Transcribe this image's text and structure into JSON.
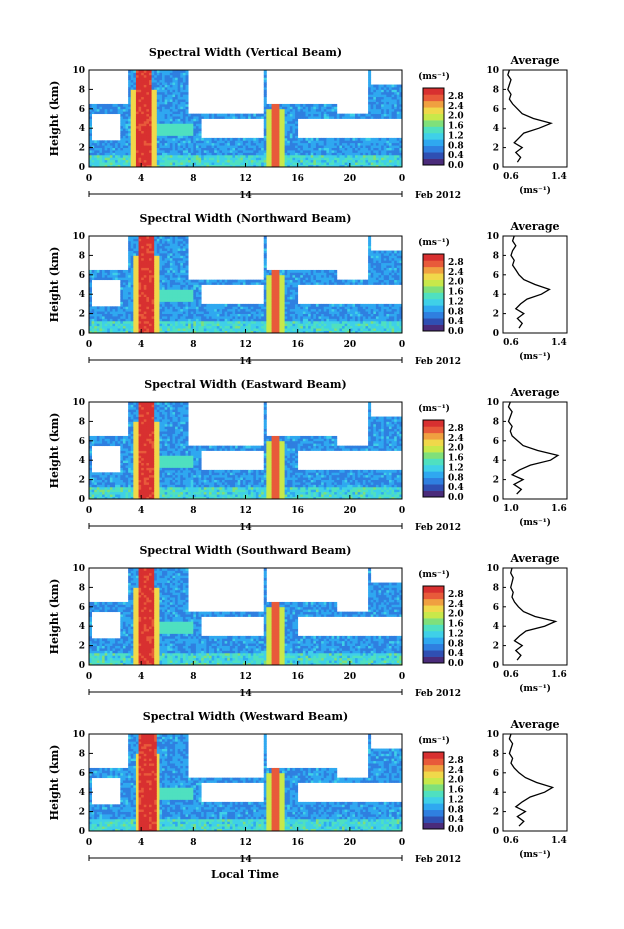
{
  "figure": {
    "xlabel": "Local Time",
    "ylabel": "Height (km)",
    "date_label": "Feb 2012",
    "day_label": "14",
    "colorbar_unit": "(ms⁻¹)",
    "average_title": "Average",
    "average_xlabel": "(ms⁻¹)"
  },
  "colormap": [
    "#4a2b7a",
    "#2f4fb3",
    "#2f7fe0",
    "#2fa8f0",
    "#3fd0e8",
    "#4fe0c0",
    "#7fe07a",
    "#c8e84a",
    "#f0d84a",
    "#f0a040",
    "#e85a3a",
    "#d83030"
  ],
  "chart_data": [
    {
      "type": "heatmap",
      "title": "Spectral Width (Vertical Beam)",
      "xlim": [
        0,
        24
      ],
      "ylim": [
        0,
        10
      ],
      "x_ticks": [
        "0",
        "4",
        "8",
        "12",
        "16",
        "20",
        "0"
      ],
      "y_ticks": [
        "0",
        "2",
        "4",
        "6",
        "8",
        "10"
      ],
      "colorbar_ticks": [
        "0.0",
        "0.4",
        "0.8",
        "1.2",
        "1.6",
        "2.0",
        "2.4",
        "2.8"
      ],
      "average_profile": {
        "xlim": [
          0.6,
          1.4
        ],
        "x_ticks": [
          "0.6",
          "1.4"
        ],
        "y_ticks": [
          "0",
          "2",
          "4",
          "6",
          "8",
          "10"
        ],
        "height": [
          0.5,
          1,
          1.5,
          2,
          2.5,
          3,
          3.5,
          4,
          4.5,
          5,
          5.5,
          6,
          6.5,
          7,
          7.5,
          8,
          8.5,
          9,
          9.5,
          10
        ],
        "value": [
          0.78,
          0.82,
          0.76,
          0.84,
          0.74,
          0.8,
          0.86,
          1.05,
          1.2,
          0.98,
          0.84,
          0.78,
          0.72,
          0.68,
          0.7,
          0.66,
          0.68,
          0.7,
          0.66,
          0.68
        ]
      }
    },
    {
      "type": "heatmap",
      "title": "Spectral Width (Northward Beam)",
      "xlim": [
        0,
        24
      ],
      "ylim": [
        0,
        10
      ],
      "x_ticks": [
        "0",
        "4",
        "8",
        "12",
        "16",
        "20",
        "0"
      ],
      "y_ticks": [
        "0",
        "2",
        "4",
        "6",
        "8",
        "10"
      ],
      "colorbar_ticks": [
        "0.0",
        "0.4",
        "0.8",
        "1.2",
        "1.6",
        "2.0",
        "2.4",
        "2.8"
      ],
      "average_profile": {
        "xlim": [
          0.6,
          1.4
        ],
        "x_ticks": [
          "0.6",
          "1.4"
        ],
        "y_ticks": [
          "0",
          "2",
          "4",
          "6",
          "8",
          "10"
        ],
        "height": [
          0.5,
          1,
          1.5,
          2,
          2.5,
          3,
          3.5,
          4,
          4.5,
          5,
          5.5,
          6,
          6.5,
          7,
          7.5,
          8,
          8.5,
          9,
          9.5,
          10
        ],
        "value": [
          0.8,
          0.84,
          0.78,
          0.86,
          0.76,
          0.82,
          0.9,
          1.08,
          1.18,
          1.0,
          0.86,
          0.8,
          0.76,
          0.72,
          0.74,
          0.7,
          0.72,
          0.76,
          0.72,
          0.74
        ]
      }
    },
    {
      "type": "heatmap",
      "title": "Spectral Width (Eastward Beam)",
      "xlim": [
        0,
        24
      ],
      "ylim": [
        0,
        10
      ],
      "x_ticks": [
        "0",
        "4",
        "8",
        "12",
        "16",
        "20",
        "0"
      ],
      "y_ticks": [
        "0",
        "2",
        "4",
        "6",
        "8",
        "10"
      ],
      "colorbar_ticks": [
        "0.0",
        "0.4",
        "0.8",
        "1.2",
        "1.6",
        "2.0",
        "2.4",
        "2.8"
      ],
      "average_profile": {
        "xlim": [
          0.9,
          1.6
        ],
        "x_ticks": [
          "1.0",
          "1.6"
        ],
        "y_ticks": [
          "0",
          "2",
          "4",
          "6",
          "8",
          "10"
        ],
        "height": [
          0.5,
          1,
          1.5,
          2,
          2.5,
          3,
          3.5,
          4,
          4.5,
          5,
          5.5,
          6,
          6.5,
          7,
          7.5,
          8,
          8.5,
          9,
          9.5,
          10
        ],
        "value": [
          1.05,
          1.1,
          1.02,
          1.12,
          1.0,
          1.08,
          1.2,
          1.42,
          1.5,
          1.28,
          1.12,
          1.06,
          1.0,
          0.98,
          1.0,
          0.96,
          0.98,
          1.0,
          0.96,
          0.98
        ]
      }
    },
    {
      "type": "heatmap",
      "title": "Spectral Width (Southward Beam)",
      "xlim": [
        0,
        24
      ],
      "ylim": [
        0,
        10
      ],
      "x_ticks": [
        "0",
        "4",
        "8",
        "12",
        "16",
        "20",
        "0"
      ],
      "y_ticks": [
        "0",
        "2",
        "4",
        "6",
        "8",
        "10"
      ],
      "colorbar_ticks": [
        "0.0",
        "0.4",
        "0.8",
        "1.2",
        "1.6",
        "2.0",
        "2.4",
        "2.8"
      ],
      "average_profile": {
        "xlim": [
          0.6,
          1.6
        ],
        "x_ticks": [
          "0.6",
          "1.6"
        ],
        "y_ticks": [
          "0",
          "2",
          "4",
          "6",
          "8",
          "10"
        ],
        "height": [
          0.5,
          1,
          1.5,
          2,
          2.5,
          3,
          3.5,
          4,
          4.5,
          5,
          5.5,
          6,
          6.5,
          7,
          7.5,
          8,
          8.5,
          9,
          9.5,
          10
        ],
        "value": [
          0.82,
          0.88,
          0.8,
          0.9,
          0.78,
          0.86,
          0.96,
          1.25,
          1.42,
          1.1,
          0.92,
          0.84,
          0.78,
          0.74,
          0.76,
          0.72,
          0.74,
          0.76,
          0.72,
          0.74
        ]
      }
    },
    {
      "type": "heatmap",
      "title": "Spectral Width (Westward Beam)",
      "xlim": [
        0,
        24
      ],
      "ylim": [
        0,
        10
      ],
      "x_ticks": [
        "0",
        "4",
        "8",
        "12",
        "16",
        "20",
        "0"
      ],
      "y_ticks": [
        "0",
        "2",
        "4",
        "6",
        "8",
        "10"
      ],
      "colorbar_ticks": [
        "0.0",
        "0.4",
        "0.8",
        "1.2",
        "1.6",
        "2.0",
        "2.4",
        "2.8"
      ],
      "average_profile": {
        "xlim": [
          0.6,
          1.4
        ],
        "x_ticks": [
          "0.6",
          "1.4"
        ],
        "y_ticks": [
          "0",
          "2",
          "4",
          "6",
          "8",
          "10"
        ],
        "height": [
          0.5,
          1,
          1.5,
          2,
          2.5,
          3,
          3.5,
          4,
          4.5,
          5,
          5.5,
          6,
          6.5,
          7,
          7.5,
          8,
          8.5,
          9,
          9.5,
          10
        ],
        "value": [
          0.8,
          0.86,
          0.78,
          0.88,
          0.76,
          0.84,
          0.94,
          1.12,
          1.22,
          1.02,
          0.88,
          0.8,
          0.74,
          0.7,
          0.72,
          0.68,
          0.7,
          0.72,
          0.68,
          0.7
        ]
      }
    }
  ]
}
